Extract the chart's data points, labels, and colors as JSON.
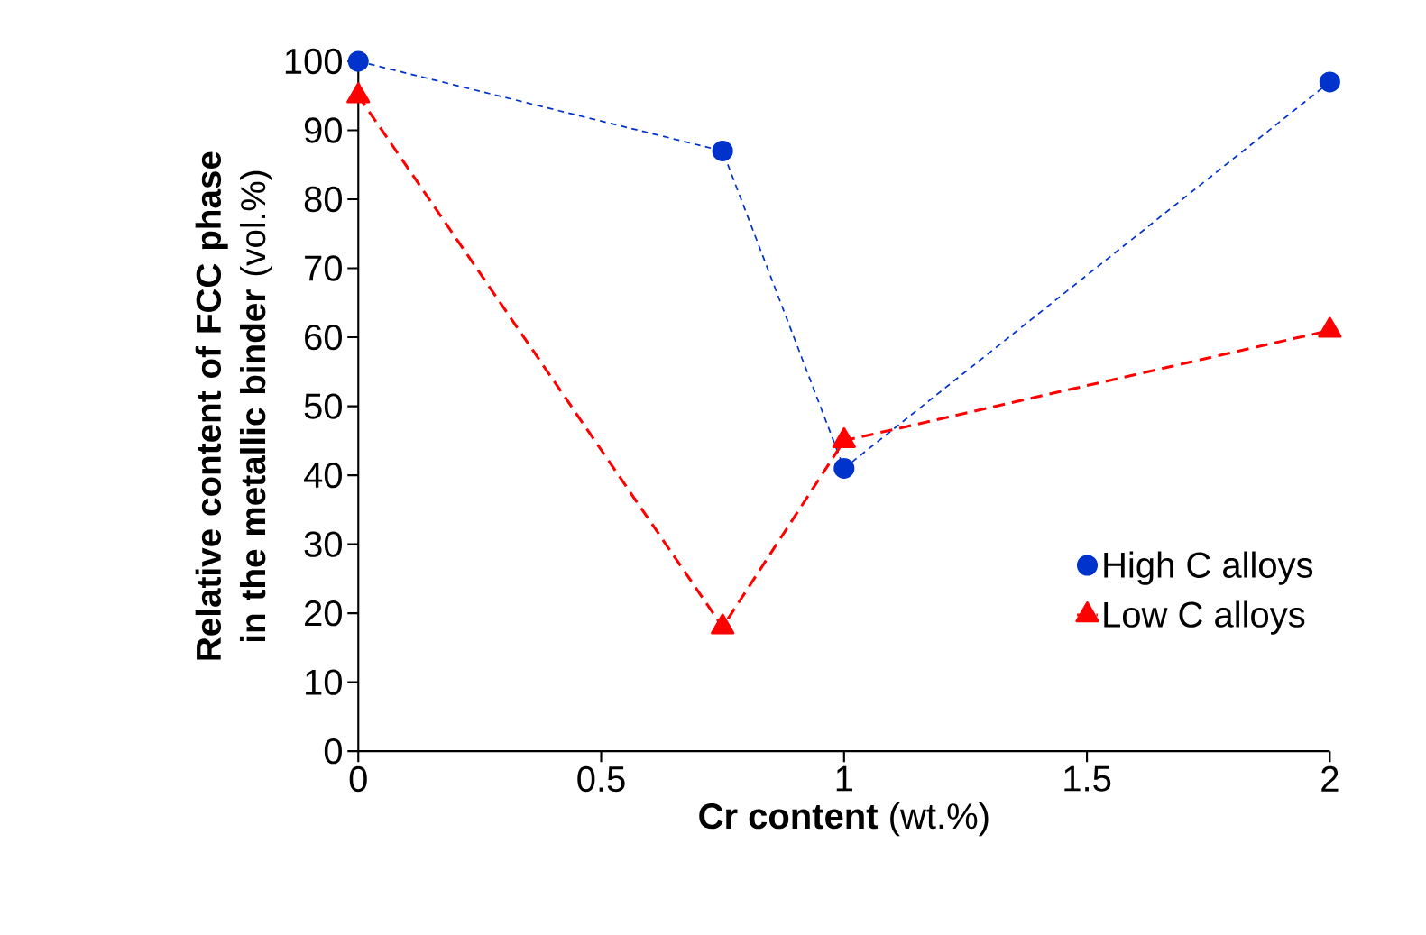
{
  "chart_data": {
    "type": "line",
    "xlabel": "**Cr content** (wt.%)",
    "ylabel": "**Relative content of FCC phase in the metallic binder** (vol.%)",
    "x": [
      0,
      0.75,
      1,
      2
    ],
    "series": [
      {
        "name": "High C alloys",
        "color": "#0033cc",
        "values": [
          100,
          87,
          41,
          97
        ],
        "marker": "circle"
      },
      {
        "name": "Low C alloys",
        "color": "#ff0000",
        "values": [
          95,
          18,
          45,
          61
        ],
        "marker": "triangle"
      }
    ],
    "xlim": [
      0,
      2
    ],
    "xticks": [
      0,
      0.5,
      1,
      1.5,
      2
    ],
    "ylim": [
      0,
      100
    ],
    "yticks": [
      0,
      10,
      20,
      30,
      40,
      50,
      60,
      70,
      80,
      90,
      100
    ],
    "grid": false,
    "legend": "bottom right",
    "line_style": "dashed"
  }
}
